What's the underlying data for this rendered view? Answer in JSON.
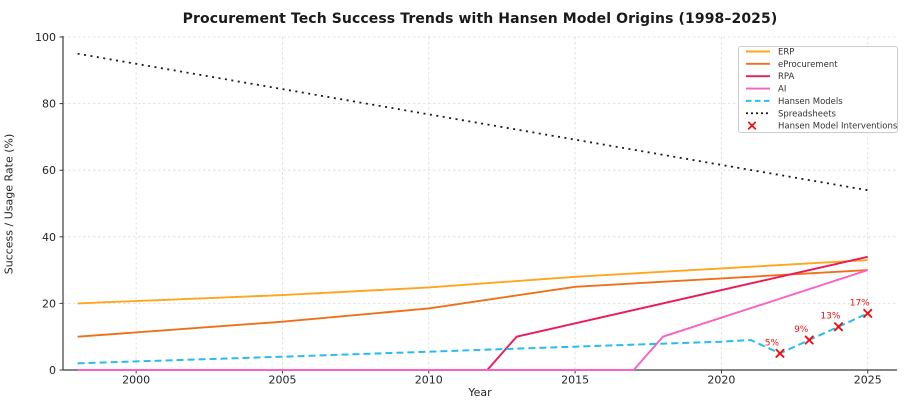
{
  "chart_data": {
    "type": "line",
    "title": "Procurement Tech Success Trends with Hansen Model Origins (1998–2025)",
    "xlabel": "Year",
    "ylabel": "Success / Usage Rate (%)",
    "xlim": [
      1997.5,
      2026.0
    ],
    "ylim": [
      0,
      100
    ],
    "xticks": [
      2000,
      2005,
      2010,
      2015,
      2020,
      2025
    ],
    "yticks": [
      0,
      20,
      40,
      60,
      80,
      100
    ],
    "grid": true,
    "legend_position": "upper right",
    "series": [
      {
        "name": "ERP",
        "color": "#FFA51E",
        "linestyle": "solid",
        "points": [
          [
            1998,
            20
          ],
          [
            2005,
            22.5
          ],
          [
            2010,
            24.8
          ],
          [
            2015,
            28
          ],
          [
            2020,
            30.5
          ],
          [
            2025,
            33
          ]
        ]
      },
      {
        "name": "eProcurement",
        "color": "#F0701A",
        "linestyle": "solid",
        "points": [
          [
            1998,
            10
          ],
          [
            2005,
            14.5
          ],
          [
            2010,
            18.5
          ],
          [
            2015,
            25
          ],
          [
            2020,
            27.5
          ],
          [
            2025,
            30
          ]
        ]
      },
      {
        "name": "RPA",
        "color": "#EC1A58",
        "linestyle": "solid",
        "points": [
          [
            1998,
            0
          ],
          [
            2012,
            0
          ],
          [
            2013,
            10
          ],
          [
            2025,
            34
          ]
        ]
      },
      {
        "name": "AI",
        "color": "#F861C6",
        "linestyle": "solid",
        "points": [
          [
            1998,
            0
          ],
          [
            2017,
            0
          ],
          [
            2018,
            10
          ],
          [
            2025,
            30
          ]
        ]
      },
      {
        "name": "Hansen Models",
        "color": "#29BCEE",
        "linestyle": "dashed",
        "points": [
          [
            1998,
            2
          ],
          [
            2005,
            4
          ],
          [
            2010,
            5.5
          ],
          [
            2015,
            7
          ],
          [
            2020,
            8.5
          ],
          [
            2021,
            9
          ],
          [
            2022,
            5
          ],
          [
            2023,
            9
          ],
          [
            2024,
            13
          ],
          [
            2025,
            17
          ]
        ]
      },
      {
        "name": "Spreadsheets",
        "color": "#1A1A1A",
        "linestyle": "dotted",
        "points": [
          [
            1998,
            95
          ],
          [
            2025,
            54
          ]
        ]
      }
    ],
    "annotations": {
      "name": "Hansen Model Interventions",
      "marker": "x",
      "color": "#EF1111",
      "points": [
        {
          "year": 2022,
          "value": 5,
          "label": "5%"
        },
        {
          "year": 2023,
          "value": 9,
          "label": "9%"
        },
        {
          "year": 2024,
          "value": 13,
          "label": "13%"
        },
        {
          "year": 2025,
          "value": 17,
          "label": "17%"
        }
      ]
    },
    "legend_items": [
      {
        "label": "ERP",
        "swatch": "line",
        "color": "#FFA51E",
        "linestyle": "solid"
      },
      {
        "label": "eProcurement",
        "swatch": "line",
        "color": "#F0701A",
        "linestyle": "solid"
      },
      {
        "label": "RPA",
        "swatch": "line",
        "color": "#EC1A58",
        "linestyle": "solid"
      },
      {
        "label": "AI",
        "swatch": "line",
        "color": "#F861C6",
        "linestyle": "solid"
      },
      {
        "label": "Hansen Models",
        "swatch": "line",
        "color": "#29BCEE",
        "linestyle": "dashed"
      },
      {
        "label": "Spreadsheets",
        "swatch": "line",
        "color": "#1A1A1A",
        "linestyle": "dotted"
      },
      {
        "label": "Hansen Model Interventions",
        "swatch": "x-marker",
        "color": "#EF1111"
      }
    ],
    "colors": {
      "grid": "#DBDBDB",
      "spine": "#3C3C3C",
      "tick_label": "#262626",
      "legend_text": "#333333",
      "legend_border": "#CCCCCC",
      "title": "#1A1A1A",
      "background": "#FFFFFF"
    }
  }
}
